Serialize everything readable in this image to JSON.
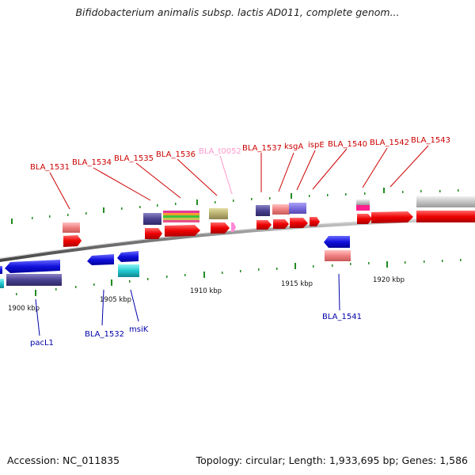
{
  "title": "Bifidobacterium animalis subsp. lactis AD011, complete genom...",
  "footer": {
    "accession": "Accession: NC_011835",
    "stats": "Topology: circular; Length: 1,933,695 bp; Genes: 1,586"
  },
  "scale_labels": [
    "1900 kbp",
    "1905 kbp",
    "1910 kbp",
    "1915 kbp",
    "1920 kbp"
  ],
  "top_labels": [
    {
      "text": "BLA_1531",
      "color": "#cc0000"
    },
    {
      "text": "BLA_1534",
      "color": "#cc0000"
    },
    {
      "text": "BLA_1535",
      "color": "#cc0000"
    },
    {
      "text": "BLA_1536",
      "color": "#cc0000"
    },
    {
      "text": "BLA_t0052",
      "color": "#ff99cc"
    },
    {
      "text": "BLA_1537",
      "color": "#cc0000"
    },
    {
      "text": "ksgA",
      "color": "#cc0000"
    },
    {
      "text": "ispE",
      "color": "#cc0000"
    },
    {
      "text": "BLA_1540",
      "color": "#cc0000"
    },
    {
      "text": "BLA_1542",
      "color": "#cc0000"
    },
    {
      "text": "BLA_1543",
      "color": "#cc0000"
    }
  ],
  "bottom_labels": [
    {
      "text": "pacL1",
      "color": "#0000aa"
    },
    {
      "text": "BLA_1532",
      "color": "#0000aa"
    },
    {
      "text": "msiK",
      "color": "#0000aa"
    },
    {
      "text": "BLA_1541",
      "color": "#0000aa"
    }
  ]
}
